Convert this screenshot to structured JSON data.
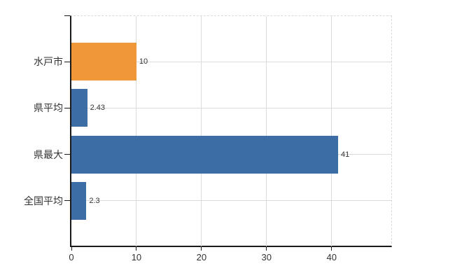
{
  "chart_data": {
    "type": "bar",
    "orientation": "horizontal",
    "title": "",
    "categories": [
      "水戸市",
      "県平均",
      "県最大",
      "全国平均"
    ],
    "values": [
      10,
      2.43,
      41,
      2.3
    ],
    "value_labels": [
      "10",
      "2.43",
      "41",
      "2.3"
    ],
    "bar_colors": [
      "#f0973a",
      "#3c6da5",
      "#3c6da5",
      "#3c6da5"
    ],
    "x_tick_labels": [
      "0",
      "10",
      "20",
      "30",
      "40"
    ],
    "x_tick_values": [
      0,
      10,
      20,
      30,
      40
    ],
    "xlim": [
      0,
      49.5
    ],
    "grid": true,
    "legend": "none",
    "colors": {
      "bar_orange": "#f0973a",
      "bar_blue": "#3c6da5",
      "axis": "#1a1a1a",
      "gridline": "#d9ddd9",
      "text": "#333333",
      "background": "#ffffff"
    }
  }
}
